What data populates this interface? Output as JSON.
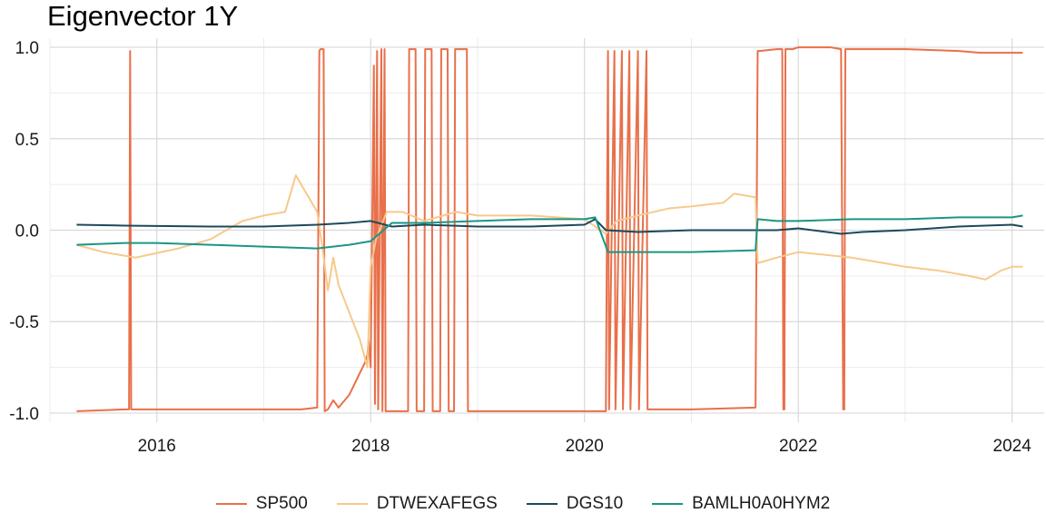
{
  "chart_data": {
    "type": "line",
    "title": "Eigenvector 1Y",
    "xlabel": "",
    "ylabel": "",
    "xlim": [
      2015.0,
      2024.3
    ],
    "ylim": [
      -1.05,
      1.05
    ],
    "x_ticks": [
      "2016",
      "2018",
      "2020",
      "2022",
      "2024"
    ],
    "y_ticks": [
      "-1.0",
      "-0.5",
      "0.0",
      "0.5",
      "1.0"
    ],
    "grid": true,
    "legend_position": "bottom",
    "series": [
      {
        "name": "SP500",
        "color": "#E8704A",
        "x": [
          2015.25,
          2015.7,
          2015.74,
          2015.75,
          2015.76,
          2015.8,
          2016.5,
          2017.0,
          2017.2,
          2017.35,
          2017.5,
          2017.52,
          2017.53,
          2017.56,
          2017.57,
          2017.6,
          2017.65,
          2017.7,
          2017.8,
          2017.9,
          2017.95,
          2017.97,
          2017.98,
          2018.0,
          2018.03,
          2018.04,
          2018.06,
          2018.07,
          2018.1,
          2018.11,
          2018.13,
          2018.14,
          2018.16,
          2018.2,
          2018.35,
          2018.36,
          2018.42,
          2018.43,
          2018.5,
          2018.51,
          2018.57,
          2018.58,
          2018.65,
          2018.66,
          2018.72,
          2018.73,
          2018.78,
          2018.79,
          2018.9,
          2018.91,
          2019.0,
          2019.5,
          2020.0,
          2020.2,
          2020.22,
          2020.23,
          2020.28,
          2020.29,
          2020.35,
          2020.36,
          2020.42,
          2020.43,
          2020.5,
          2020.51,
          2020.58,
          2020.59,
          2020.68,
          2020.7,
          2021.0,
          2021.6,
          2021.62,
          2021.64,
          2021.8,
          2021.85,
          2021.86,
          2021.87,
          2021.88,
          2021.95,
          2022.0,
          2022.3,
          2022.4,
          2022.42,
          2022.43,
          2022.44,
          2022.6,
          2023.0,
          2023.5,
          2023.7,
          2024.0,
          2024.1
        ],
        "y": [
          -0.99,
          -0.98,
          -0.98,
          0.98,
          -0.98,
          -0.98,
          -0.98,
          -0.98,
          -0.98,
          -0.98,
          -0.97,
          0.98,
          0.99,
          0.99,
          -0.99,
          -0.98,
          -0.93,
          -0.97,
          -0.9,
          -0.78,
          -0.72,
          -0.68,
          -0.6,
          -0.75,
          0.9,
          -0.95,
          0.98,
          -0.98,
          0.99,
          -0.99,
          0.99,
          -0.99,
          -0.99,
          -0.99,
          -0.99,
          0.99,
          0.99,
          -0.99,
          -0.99,
          0.99,
          0.99,
          -0.99,
          -0.99,
          0.99,
          0.99,
          -0.99,
          -0.99,
          0.99,
          0.99,
          -0.99,
          -0.99,
          -0.99,
          -0.99,
          -0.99,
          0.98,
          -0.98,
          0.98,
          -0.98,
          0.98,
          -0.98,
          0.98,
          -0.98,
          0.98,
          -0.98,
          0.98,
          -0.98,
          -0.98,
          -0.98,
          -0.98,
          -0.97,
          0.98,
          0.98,
          0.99,
          0.99,
          -0.98,
          -0.98,
          0.99,
          0.99,
          1.0,
          1.0,
          0.99,
          -0.98,
          -0.98,
          0.99,
          0.99,
          0.99,
          0.98,
          0.97,
          0.97,
          0.97
        ]
      },
      {
        "name": "DTWEXAFEGS",
        "color": "#F7C98C",
        "x": [
          2015.25,
          2015.5,
          2015.8,
          2016.2,
          2016.5,
          2016.8,
          2017.0,
          2017.2,
          2017.3,
          2017.4,
          2017.45,
          2017.5,
          2017.55,
          2017.6,
          2017.65,
          2017.7,
          2017.8,
          2017.9,
          2017.97,
          2018.0,
          2018.05,
          2018.15,
          2018.3,
          2018.5,
          2018.8,
          2019.0,
          2019.5,
          2020.0,
          2020.1,
          2020.2,
          2020.3,
          2020.5,
          2020.8,
          2021.0,
          2021.3,
          2021.4,
          2021.6,
          2021.62,
          2021.8,
          2022.0,
          2022.5,
          2023.0,
          2023.3,
          2023.6,
          2023.75,
          2023.9,
          2024.0,
          2024.1
        ],
        "y": [
          -0.08,
          -0.12,
          -0.15,
          -0.1,
          -0.05,
          0.05,
          0.08,
          0.1,
          0.3,
          0.2,
          0.15,
          0.1,
          -0.1,
          -0.33,
          -0.15,
          -0.3,
          -0.45,
          -0.6,
          -0.75,
          -0.2,
          -0.05,
          0.1,
          0.1,
          0.05,
          0.1,
          0.08,
          0.08,
          0.06,
          0.02,
          -0.02,
          0.05,
          0.08,
          0.12,
          0.13,
          0.15,
          0.2,
          0.18,
          -0.18,
          -0.15,
          -0.12,
          -0.15,
          -0.2,
          -0.22,
          -0.25,
          -0.27,
          -0.22,
          -0.2,
          -0.2
        ]
      },
      {
        "name": "DGS10",
        "color": "#1B4A5A",
        "x": [
          2015.25,
          2015.7,
          2016.5,
          2017.0,
          2017.5,
          2017.8,
          2018.0,
          2018.2,
          2018.5,
          2019.0,
          2019.5,
          2020.0,
          2020.1,
          2020.2,
          2020.5,
          2021.0,
          2021.5,
          2021.8,
          2022.0,
          2022.4,
          2022.6,
          2023.0,
          2023.5,
          2024.0,
          2024.1
        ],
        "y": [
          0.03,
          0.025,
          0.02,
          0.02,
          0.03,
          0.04,
          0.05,
          0.02,
          0.03,
          0.02,
          0.02,
          0.03,
          0.06,
          0.0,
          -0.01,
          0.0,
          0.0,
          0.0,
          0.01,
          -0.02,
          -0.01,
          0.0,
          0.02,
          0.03,
          0.02
        ]
      },
      {
        "name": "BAMLH0A0HYM2",
        "color": "#1A9686",
        "x": [
          2015.25,
          2015.7,
          2016.0,
          2016.5,
          2017.0,
          2017.5,
          2017.8,
          2018.0,
          2018.2,
          2018.5,
          2019.0,
          2019.5,
          2020.0,
          2020.1,
          2020.22,
          2020.7,
          2021.0,
          2021.6,
          2021.62,
          2021.8,
          2022.0,
          2022.5,
          2023.0,
          2023.5,
          2024.0,
          2024.1
        ],
        "y": [
          -0.08,
          -0.07,
          -0.07,
          -0.08,
          -0.09,
          -0.1,
          -0.08,
          -0.06,
          0.04,
          0.04,
          0.05,
          0.06,
          0.06,
          0.07,
          -0.12,
          -0.12,
          -0.12,
          -0.11,
          0.06,
          0.05,
          0.05,
          0.06,
          0.06,
          0.07,
          0.07,
          0.08
        ]
      }
    ]
  }
}
